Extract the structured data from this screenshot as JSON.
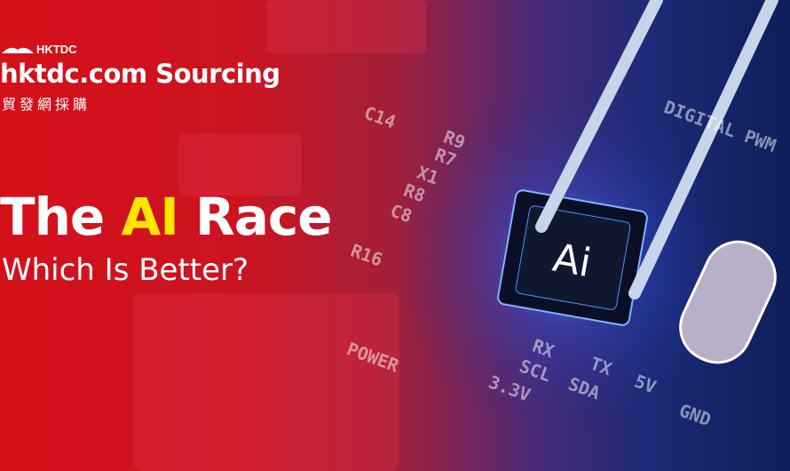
{
  "brand": {
    "logo_text": "HKTDC",
    "name": "hktdc.com Sourcing",
    "chinese_name": "貿發網採購"
  },
  "headline": {
    "prefix": "The ",
    "highlight": "AI",
    "suffix": " Race",
    "subtitle": "Which Is Better?"
  },
  "chip_label": "Ai",
  "pcb_labels": [
    "POWER",
    "RX",
    "TX",
    "5V",
    "SCL",
    "SDA",
    "3.3V",
    "GND",
    "DIGITAL PWM",
    "C14",
    "R9",
    "R7",
    "X1",
    "R8",
    "C8",
    "R16"
  ],
  "colors": {
    "brand_red": "#d4101a",
    "highlight": "#ffe600",
    "deep_blue": "#0f1e5a"
  }
}
